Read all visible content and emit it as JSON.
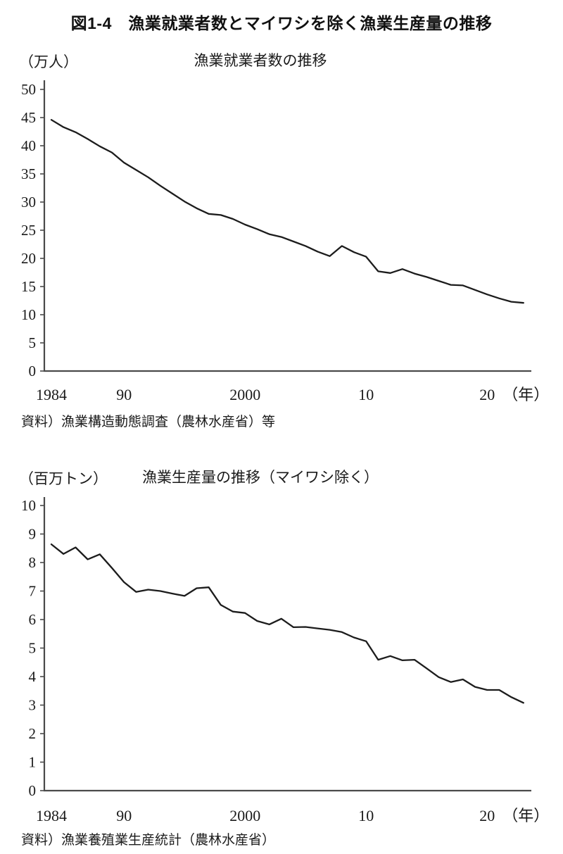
{
  "figure_title": "図1-4　漁業就業者数とマイワシを除く漁業生産量の推移",
  "colors": {
    "line": "#1c1c1c",
    "axis": "#4a4a4a",
    "text": "#1a1a1a",
    "background": "#ffffff"
  },
  "chart_data": [
    {
      "type": "line",
      "id": "fishery-workers",
      "title": "漁業就業者数の推移",
      "unit_label": "（万人）",
      "source": "資料）漁業構造動態調査（農林水産省）等",
      "ylim": [
        0,
        50
      ],
      "ytick_step": 5,
      "ytick_labels": [
        "0",
        "5",
        "10",
        "15",
        "20",
        "25",
        "30",
        "35",
        "40",
        "45",
        "50"
      ],
      "xticks": [
        {
          "year": 1984,
          "label": "1984"
        },
        {
          "year": 1990,
          "label": "90"
        },
        {
          "year": 2000,
          "label": "2000"
        },
        {
          "year": 2010,
          "label": "10"
        },
        {
          "year": 2020,
          "label": "20"
        }
      ],
      "x_suffix": "（年）",
      "x": [
        1984,
        1985,
        1986,
        1987,
        1988,
        1989,
        1990,
        1991,
        1992,
        1993,
        1994,
        1995,
        1996,
        1997,
        1998,
        1999,
        2000,
        2001,
        2002,
        2003,
        2004,
        2005,
        2006,
        2007,
        2008,
        2009,
        2010,
        2011,
        2012,
        2013,
        2014,
        2015,
        2016,
        2017,
        2018,
        2019,
        2020,
        2021,
        2022,
        2023
      ],
      "values": [
        44.6,
        43.3,
        42.4,
        41.2,
        39.9,
        38.8,
        37.0,
        35.7,
        34.4,
        32.9,
        31.5,
        30.1,
        28.9,
        27.9,
        27.7,
        27.0,
        26.0,
        25.2,
        24.3,
        23.8,
        23.0,
        22.2,
        21.2,
        20.4,
        22.2,
        21.1,
        20.3,
        17.7,
        17.4,
        18.1,
        17.3,
        16.7,
        16.0,
        15.3,
        15.2,
        14.4,
        13.6,
        12.9,
        12.3,
        12.1
      ],
      "grid": false,
      "legend": "none"
    },
    {
      "type": "line",
      "id": "fishery-production-excl-sardine",
      "title": "漁業生産量の推移（マイワシ除く）",
      "unit_label": "（百万トン）",
      "source": "資料）漁業養殖業生産統計（農林水産省）",
      "ylim": [
        0,
        10
      ],
      "ytick_step": 1,
      "ytick_labels": [
        "0",
        "1",
        "2",
        "3",
        "4",
        "5",
        "6",
        "7",
        "8",
        "9",
        "10"
      ],
      "xticks": [
        {
          "year": 1984,
          "label": "1984"
        },
        {
          "year": 1990,
          "label": "90"
        },
        {
          "year": 2000,
          "label": "2000"
        },
        {
          "year": 2010,
          "label": "10"
        },
        {
          "year": 2020,
          "label": "20"
        }
      ],
      "x_suffix": "（年）",
      "x": [
        1984,
        1985,
        1986,
        1987,
        1988,
        1989,
        1990,
        1991,
        1992,
        1993,
        1994,
        1995,
        1996,
        1997,
        1998,
        1999,
        2000,
        2001,
        2002,
        2003,
        2004,
        2005,
        2006,
        2007,
        2008,
        2009,
        2010,
        2011,
        2012,
        2013,
        2014,
        2015,
        2016,
        2017,
        2018,
        2019,
        2020,
        2021,
        2022,
        2023
      ],
      "values": [
        8.64,
        8.3,
        8.53,
        8.11,
        8.29,
        7.81,
        7.31,
        6.97,
        7.05,
        7.0,
        6.91,
        6.83,
        7.1,
        7.13,
        6.51,
        6.28,
        6.23,
        5.95,
        5.83,
        6.03,
        5.73,
        5.74,
        5.69,
        5.64,
        5.56,
        5.37,
        5.24,
        4.59,
        4.72,
        4.57,
        4.59,
        4.29,
        3.98,
        3.81,
        3.9,
        3.64,
        3.53,
        3.53,
        3.28,
        3.08
      ],
      "grid": false,
      "legend": "none"
    }
  ]
}
